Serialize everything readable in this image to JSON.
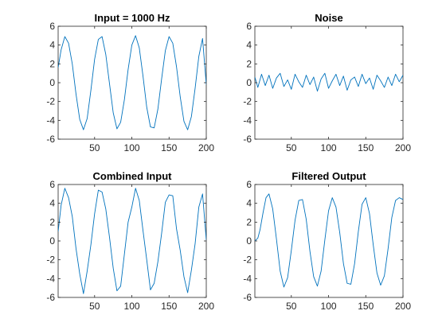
{
  "colors": {
    "series": "#0072BD",
    "axis": "#262626",
    "background": "#ffffff"
  },
  "chart_data": [
    {
      "type": "line",
      "title": "Input = 1000 Hz",
      "xlabel": "",
      "ylabel": "",
      "xlim": [
        1,
        200
      ],
      "ylim": [
        -6,
        6
      ],
      "xticks": [
        50,
        100,
        150,
        200
      ],
      "yticks": [
        -6,
        -4,
        -2,
        0,
        2,
        4,
        6
      ],
      "xtick_labels": [
        "50",
        "100",
        "150",
        "200"
      ],
      "ytick_labels": [
        "-6",
        "-4",
        "-2",
        "0",
        "2",
        "4",
        "6"
      ],
      "grid": false,
      "series": [
        {
          "x": [
            1,
            5,
            10,
            15,
            20,
            25,
            30,
            35,
            40,
            45,
            50,
            55,
            60,
            65,
            70,
            75,
            80,
            85,
            90,
            95,
            100,
            105,
            110,
            115,
            120,
            125,
            130,
            135,
            140,
            145,
            150,
            155,
            160,
            165,
            170,
            175,
            180,
            185,
            190,
            195,
            200
          ],
          "y": [
            1.6,
            3.5,
            4.9,
            4.2,
            2.0,
            -1.2,
            -3.9,
            -5.0,
            -3.8,
            -0.8,
            2.5,
            4.6,
            4.9,
            3.0,
            -0.1,
            -3.2,
            -4.9,
            -4.2,
            -1.8,
            1.4,
            4.0,
            5.0,
            3.7,
            0.7,
            -2.6,
            -4.7,
            -4.8,
            -2.8,
            0.4,
            3.4,
            4.9,
            4.2,
            1.7,
            -1.5,
            -4.1,
            -5.0,
            -3.6,
            -0.6,
            2.8,
            4.7,
            -0.2
          ]
        }
      ]
    },
    {
      "type": "line",
      "title": "Noise",
      "xlabel": "",
      "ylabel": "",
      "xlim": [
        1,
        200
      ],
      "ylim": [
        -6,
        6
      ],
      "xticks": [
        50,
        100,
        150,
        200
      ],
      "yticks": [
        -6,
        -4,
        -2,
        0,
        2,
        4,
        6
      ],
      "xtick_labels": [
        "50",
        "100",
        "150",
        "200"
      ],
      "ytick_labels": [
        "-6",
        "-4",
        "-2",
        "0",
        "2",
        "4",
        "6"
      ],
      "grid": false,
      "series": [
        {
          "x": [
            1,
            5,
            10,
            15,
            20,
            25,
            30,
            35,
            40,
            45,
            50,
            55,
            60,
            65,
            70,
            75,
            80,
            85,
            90,
            95,
            100,
            105,
            110,
            115,
            120,
            125,
            130,
            135,
            140,
            145,
            150,
            155,
            160,
            165,
            170,
            175,
            180,
            185,
            190,
            195,
            200
          ],
          "y": [
            0.6,
            -0.5,
            0.9,
            -0.3,
            0.8,
            -0.6,
            0.5,
            1.0,
            -0.4,
            0.3,
            -0.7,
            0.9,
            0.1,
            -0.5,
            0.8,
            -0.2,
            0.6,
            -0.9,
            0.4,
            1.0,
            -0.6,
            0.2,
            0.9,
            -0.3,
            0.7,
            -0.8,
            0.3,
            0.6,
            -0.4,
            0.9,
            -0.1,
            0.5,
            -0.7,
            0.8,
            0.2,
            -0.5,
            0.6,
            -0.3,
            0.9,
            0.1,
            0.8
          ]
        }
      ]
    },
    {
      "type": "line",
      "title": "Combined Input",
      "xlabel": "",
      "ylabel": "",
      "xlim": [
        1,
        200
      ],
      "ylim": [
        -6,
        6
      ],
      "xticks": [
        50,
        100,
        150,
        200
      ],
      "yticks": [
        -6,
        -4,
        -2,
        0,
        2,
        4,
        6
      ],
      "xtick_labels": [
        "50",
        "100",
        "150",
        "200"
      ],
      "ytick_labels": [
        "-6",
        "-4",
        "-2",
        "0",
        "2",
        "4",
        "6"
      ],
      "grid": false,
      "series": [
        {
          "x": [
            1,
            5,
            10,
            15,
            20,
            25,
            30,
            35,
            40,
            45,
            50,
            55,
            60,
            65,
            70,
            75,
            80,
            85,
            90,
            95,
            100,
            105,
            110,
            115,
            120,
            125,
            130,
            135,
            140,
            145,
            150,
            155,
            160,
            165,
            170,
            175,
            180,
            185,
            190,
            195,
            200
          ],
          "y": [
            1.0,
            3.8,
            5.6,
            4.6,
            2.6,
            -0.8,
            -3.5,
            -5.6,
            -3.2,
            -0.4,
            2.9,
            5.4,
            5.2,
            3.4,
            0.4,
            -2.9,
            -5.3,
            -4.8,
            -1.4,
            2.0,
            3.6,
            5.6,
            4.3,
            1.1,
            -2.0,
            -5.2,
            -4.5,
            -2.2,
            0.8,
            4.1,
            4.9,
            4.8,
            1.3,
            -1.0,
            -3.8,
            -5.5,
            -3.1,
            -0.3,
            3.6,
            5.0,
            0.1
          ]
        }
      ]
    },
    {
      "type": "line",
      "title": "Filtered Output",
      "xlabel": "",
      "ylabel": "",
      "xlim": [
        1,
        200
      ],
      "ylim": [
        -6,
        6
      ],
      "xticks": [
        50,
        100,
        150,
        200
      ],
      "yticks": [
        -6,
        -4,
        -2,
        0,
        2,
        4,
        6
      ],
      "xtick_labels": [
        "50",
        "100",
        "150",
        "200"
      ],
      "ytick_labels": [
        "-6",
        "-4",
        "-2",
        "0",
        "2",
        "4",
        "6"
      ],
      "grid": false,
      "series": [
        {
          "x": [
            1,
            5,
            8,
            12,
            16,
            20,
            25,
            30,
            35,
            40,
            45,
            50,
            55,
            60,
            65,
            70,
            75,
            80,
            85,
            90,
            95,
            100,
            105,
            110,
            115,
            120,
            125,
            130,
            135,
            140,
            145,
            150,
            155,
            160,
            165,
            170,
            175,
            180,
            185,
            190,
            195,
            200
          ],
          "y": [
            0.0,
            0.3,
            1.2,
            3.0,
            4.6,
            5.0,
            3.4,
            0.2,
            -3.2,
            -4.9,
            -3.9,
            -1.0,
            2.2,
            4.3,
            4.4,
            2.3,
            -1.1,
            -3.8,
            -4.8,
            -3.2,
            0.1,
            3.2,
            4.6,
            3.6,
            0.9,
            -2.4,
            -4.5,
            -4.6,
            -2.4,
            1.0,
            3.9,
            4.6,
            2.9,
            -0.4,
            -3.4,
            -4.7,
            -3.7,
            -0.8,
            2.5,
            4.3,
            4.6,
            4.4
          ]
        }
      ]
    }
  ]
}
